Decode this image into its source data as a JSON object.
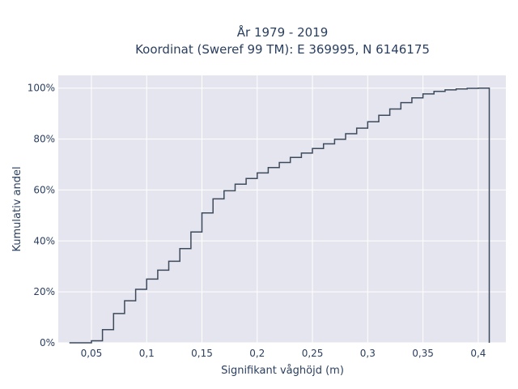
{
  "chart_data": {
    "type": "line",
    "subtype": "cumulative-step",
    "title_line1": "År 1979 - 2019",
    "title_line2": "Koordinat (Sweref 99 TM): E 369995, N 6146175",
    "xlabel": "Signifikant våghöjd (m)",
    "ylabel": "Kumulativ andel",
    "xlim": [
      0.02,
      0.425
    ],
    "ylim": [
      0,
      1.05
    ],
    "x_ticks": [
      0.05,
      0.1,
      0.15,
      0.2,
      0.25,
      0.3,
      0.35,
      0.4
    ],
    "x_tick_labels": [
      "0,05",
      "0,1",
      "0,15",
      "0,2",
      "0,25",
      "0,3",
      "0,35",
      "0,4"
    ],
    "y_ticks": [
      0,
      0.2,
      0.4,
      0.6,
      0.8,
      1.0
    ],
    "y_tick_labels": [
      "0%",
      "20%",
      "40%",
      "60%",
      "80%",
      "100%"
    ],
    "grid": true,
    "line_color": "#3d4a5c",
    "plot_background": "#e5e5ef",
    "x": [
      0.03,
      0.05,
      0.06,
      0.07,
      0.08,
      0.09,
      0.1,
      0.11,
      0.12,
      0.13,
      0.14,
      0.15,
      0.16,
      0.17,
      0.18,
      0.19,
      0.2,
      0.21,
      0.22,
      0.23,
      0.24,
      0.25,
      0.26,
      0.27,
      0.28,
      0.29,
      0.3,
      0.31,
      0.32,
      0.33,
      0.34,
      0.35,
      0.36,
      0.37,
      0.38,
      0.39,
      0.4,
      0.41
    ],
    "y": [
      0.0,
      0.008,
      0.052,
      0.115,
      0.165,
      0.21,
      0.25,
      0.285,
      0.32,
      0.37,
      0.435,
      0.51,
      0.565,
      0.597,
      0.623,
      0.645,
      0.667,
      0.688,
      0.708,
      0.728,
      0.745,
      0.763,
      0.781,
      0.799,
      0.821,
      0.843,
      0.868,
      0.893,
      0.918,
      0.943,
      0.962,
      0.977,
      0.987,
      0.993,
      0.997,
      0.999,
      1.0,
      0.0
    ]
  }
}
